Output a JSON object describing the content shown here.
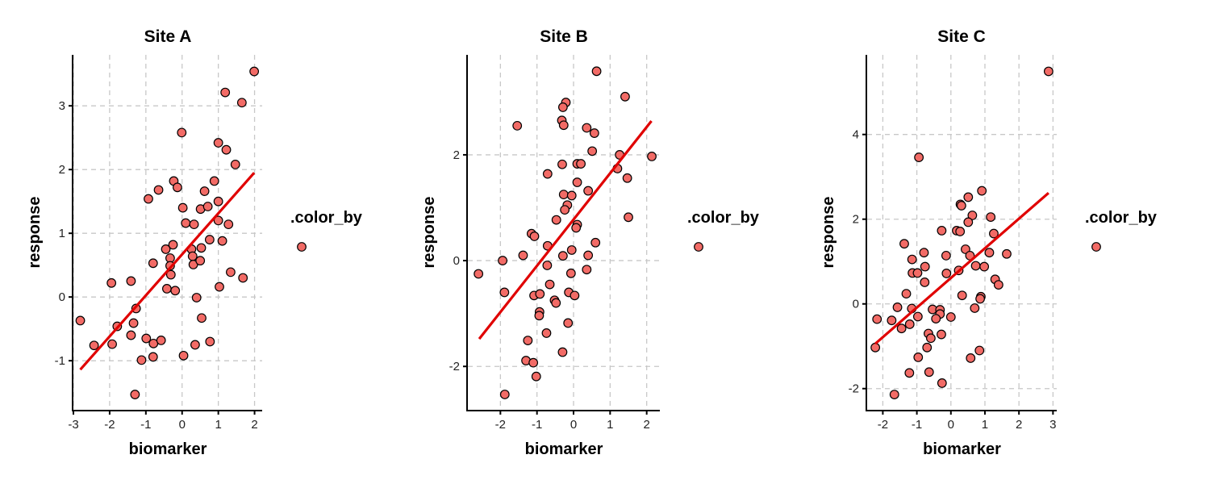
{
  "chart_data": [
    {
      "type": "scatter",
      "title": "Site A",
      "xlabel": "biomarker",
      "ylabel": "response",
      "xlim": [
        -3.0,
        2.21
      ],
      "ylim": [
        -1.77,
        3.8
      ],
      "xticks": [
        -3,
        -2,
        -1,
        0,
        1,
        2
      ],
      "yticks": [
        -1,
        0,
        1,
        2,
        3
      ],
      "grid": true,
      "points": [
        [
          1.99,
          3.54
        ],
        [
          1.19,
          3.21
        ],
        [
          1.65,
          3.05
        ],
        [
          -0.01,
          2.58
        ],
        [
          1.0,
          2.42
        ],
        [
          1.22,
          2.31
        ],
        [
          1.47,
          2.08
        ],
        [
          -0.23,
          1.82
        ],
        [
          -0.13,
          1.72
        ],
        [
          0.89,
          1.82
        ],
        [
          -0.65,
          1.68
        ],
        [
          -0.93,
          1.54
        ],
        [
          0.62,
          1.66
        ],
        [
          1.0,
          1.5
        ],
        [
          0.02,
          1.4
        ],
        [
          0.51,
          1.38
        ],
        [
          0.71,
          1.42
        ],
        [
          0.1,
          1.16
        ],
        [
          0.33,
          1.14
        ],
        [
          1.0,
          1.2
        ],
        [
          1.28,
          1.14
        ],
        [
          0.76,
          0.9
        ],
        [
          1.11,
          0.88
        ],
        [
          -0.25,
          0.82
        ],
        [
          -0.45,
          0.75
        ],
        [
          0.26,
          0.75
        ],
        [
          0.53,
          0.77
        ],
        [
          -0.33,
          0.61
        ],
        [
          0.29,
          0.64
        ],
        [
          -0.33,
          0.49
        ],
        [
          0.31,
          0.51
        ],
        [
          0.5,
          0.57
        ],
        [
          -0.8,
          0.53
        ],
        [
          -0.31,
          0.35
        ],
        [
          -1.95,
          0.22
        ],
        [
          -1.41,
          0.25
        ],
        [
          -0.42,
          0.13
        ],
        [
          -0.19,
          0.1
        ],
        [
          1.03,
          0.16
        ],
        [
          1.34,
          0.39
        ],
        [
          1.68,
          0.3
        ],
        [
          0.4,
          -0.01
        ],
        [
          -1.27,
          -0.18
        ],
        [
          0.54,
          -0.33
        ],
        [
          -2.81,
          -0.37
        ],
        [
          -1.79,
          -0.46
        ],
        [
          -1.34,
          -0.41
        ],
        [
          -1.41,
          -0.6
        ],
        [
          -2.43,
          -0.76
        ],
        [
          -1.93,
          -0.74
        ],
        [
          -0.99,
          -0.65
        ],
        [
          -0.79,
          -0.73
        ],
        [
          -0.58,
          -0.68
        ],
        [
          0.36,
          -0.75
        ],
        [
          0.77,
          -0.7
        ],
        [
          0.04,
          -0.92
        ],
        [
          -1.12,
          -0.99
        ],
        [
          -0.8,
          -0.94
        ],
        [
          -1.3,
          -1.53
        ]
      ],
      "fit_line": [
        [
          -2.81,
          -1.14
        ],
        [
          1.99,
          1.95
        ]
      ]
    },
    {
      "type": "scatter",
      "title": "Site B",
      "xlabel": "biomarker",
      "ylabel": "response",
      "xlim": [
        -2.89,
        2.36
      ],
      "ylim": [
        -2.82,
        3.89
      ],
      "xticks": [
        -2,
        -1,
        0,
        1,
        2
      ],
      "yticks": [
        -2,
        0,
        2
      ],
      "grid": true,
      "points": [
        [
          0.63,
          3.58
        ],
        [
          1.41,
          3.1
        ],
        [
          -0.21,
          2.99
        ],
        [
          -0.29,
          2.9
        ],
        [
          -1.54,
          2.55
        ],
        [
          -0.32,
          2.65
        ],
        [
          -0.27,
          2.56
        ],
        [
          0.36,
          2.51
        ],
        [
          0.57,
          2.41
        ],
        [
          0.51,
          2.07
        ],
        [
          1.26,
          2.0
        ],
        [
          2.14,
          1.97
        ],
        [
          1.2,
          1.74
        ],
        [
          1.47,
          1.56
        ],
        [
          -0.31,
          1.82
        ],
        [
          0.1,
          1.83
        ],
        [
          0.2,
          1.83
        ],
        [
          -0.71,
          1.64
        ],
        [
          0.1,
          1.48
        ],
        [
          0.4,
          1.32
        ],
        [
          -0.27,
          1.25
        ],
        [
          -0.05,
          1.23
        ],
        [
          -0.17,
          1.05
        ],
        [
          -0.24,
          0.96
        ],
        [
          -0.47,
          0.77
        ],
        [
          1.5,
          0.82
        ],
        [
          0.1,
          0.68
        ],
        [
          0.07,
          0.62
        ],
        [
          -1.15,
          0.51
        ],
        [
          -1.07,
          0.46
        ],
        [
          0.6,
          0.34
        ],
        [
          -0.71,
          0.28
        ],
        [
          -0.05,
          0.2
        ],
        [
          -1.38,
          0.1
        ],
        [
          -0.29,
          0.09
        ],
        [
          0.4,
          0.1
        ],
        [
          -1.94,
          0.0
        ],
        [
          -0.72,
          -0.09
        ],
        [
          -2.6,
          -0.25
        ],
        [
          -0.07,
          -0.24
        ],
        [
          0.36,
          -0.17
        ],
        [
          -0.65,
          -0.45
        ],
        [
          -1.89,
          -0.6
        ],
        [
          -1.08,
          -0.66
        ],
        [
          -0.92,
          -0.63
        ],
        [
          -0.13,
          -0.6
        ],
        [
          0.03,
          -0.66
        ],
        [
          -0.52,
          -0.75
        ],
        [
          -0.48,
          -0.8
        ],
        [
          -0.93,
          -0.97
        ],
        [
          -0.94,
          -1.04
        ],
        [
          -0.15,
          -1.18
        ],
        [
          -0.74,
          -1.37
        ],
        [
          -1.25,
          -1.51
        ],
        [
          -0.3,
          -1.73
        ],
        [
          -1.3,
          -1.89
        ],
        [
          -1.1,
          -1.93
        ],
        [
          -1.02,
          -2.19
        ],
        [
          -1.88,
          -2.53
        ]
      ],
      "fit_line": [
        [
          -2.58,
          -1.48
        ],
        [
          2.13,
          2.64
        ]
      ]
    },
    {
      "type": "scatter",
      "title": "Site C",
      "xlabel": "biomarker",
      "ylabel": "response",
      "xlim": [
        -2.46,
        3.11
      ],
      "ylim": [
        -2.5,
        5.88
      ],
      "xticks": [
        -2,
        -1,
        0,
        1,
        2,
        3
      ],
      "yticks": [
        -2,
        0,
        2,
        4
      ],
      "grid": true,
      "points": [
        [
          2.87,
          5.49
        ],
        [
          -0.94,
          3.46
        ],
        [
          0.91,
          2.67
        ],
        [
          0.51,
          2.52
        ],
        [
          0.28,
          2.35
        ],
        [
          0.31,
          2.32
        ],
        [
          0.63,
          2.09
        ],
        [
          1.17,
          2.05
        ],
        [
          0.51,
          1.93
        ],
        [
          -0.27,
          1.73
        ],
        [
          0.17,
          1.73
        ],
        [
          0.27,
          1.71
        ],
        [
          1.26,
          1.66
        ],
        [
          -1.37,
          1.42
        ],
        [
          0.43,
          1.29
        ],
        [
          -0.79,
          1.21
        ],
        [
          1.13,
          1.21
        ],
        [
          1.64,
          1.18
        ],
        [
          -0.14,
          1.14
        ],
        [
          0.56,
          1.14
        ],
        [
          -1.14,
          1.05
        ],
        [
          -0.76,
          0.88
        ],
        [
          0.73,
          0.9
        ],
        [
          0.98,
          0.88
        ],
        [
          -1.13,
          0.73
        ],
        [
          -0.98,
          0.73
        ],
        [
          -0.13,
          0.72
        ],
        [
          0.23,
          0.79
        ],
        [
          -0.77,
          0.51
        ],
        [
          1.3,
          0.58
        ],
        [
          1.4,
          0.45
        ],
        [
          -1.31,
          0.24
        ],
        [
          0.33,
          0.2
        ],
        [
          0.88,
          0.17
        ],
        [
          0.86,
          0.12
        ],
        [
          -1.57,
          -0.08
        ],
        [
          -1.15,
          -0.11
        ],
        [
          -0.54,
          -0.13
        ],
        [
          -0.32,
          -0.14
        ],
        [
          -0.32,
          -0.24
        ],
        [
          0.7,
          -0.1
        ],
        [
          -2.17,
          -0.36
        ],
        [
          -1.74,
          -0.39
        ],
        [
          -0.97,
          -0.3
        ],
        [
          -0.44,
          -0.35
        ],
        [
          0.0,
          -0.31
        ],
        [
          -1.45,
          -0.58
        ],
        [
          -1.21,
          -0.48
        ],
        [
          -0.66,
          -0.7
        ],
        [
          -0.59,
          -0.81
        ],
        [
          -0.28,
          -0.72
        ],
        [
          -2.22,
          -1.03
        ],
        [
          -0.7,
          -1.03
        ],
        [
          -0.96,
          -1.26
        ],
        [
          0.84,
          -1.1
        ],
        [
          0.58,
          -1.28
        ],
        [
          -1.22,
          -1.63
        ],
        [
          -0.64,
          -1.61
        ],
        [
          -0.26,
          -1.87
        ],
        [
          -1.66,
          -2.14
        ]
      ],
      "fit_line": [
        [
          -2.22,
          -0.94
        ],
        [
          2.87,
          2.62
        ]
      ]
    }
  ],
  "legend": {
    "title": ".color_by",
    "placement": "right"
  },
  "colors": {
    "point": "#F26B66",
    "line": "#E00000",
    "grid": "#c8c8c8"
  }
}
